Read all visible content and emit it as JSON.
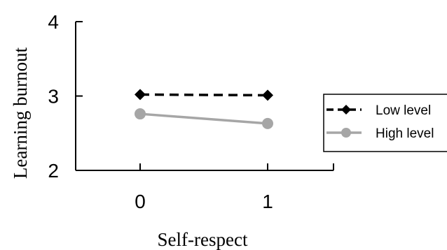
{
  "chart_data": {
    "type": "line",
    "title": "",
    "xlabel": "Self-respect",
    "ylabel": "Learning burnout",
    "x": [
      0,
      1
    ],
    "x_tick_labels": [
      "0",
      "1"
    ],
    "ylim": [
      2,
      4
    ],
    "y_ticks": [
      2,
      3,
      4
    ],
    "y_tick_labels": [
      "2",
      "3",
      "4"
    ],
    "grid": false,
    "legend_position": "right",
    "series": [
      {
        "name": "Low level",
        "values": [
          3.02,
          3.01
        ],
        "color": "#000000",
        "line_style": "dashed",
        "marker": "diamond"
      },
      {
        "name": "High level",
        "values": [
          2.76,
          2.63
        ],
        "color": "#a6a6a6",
        "line_style": "solid",
        "marker": "circle"
      }
    ]
  }
}
